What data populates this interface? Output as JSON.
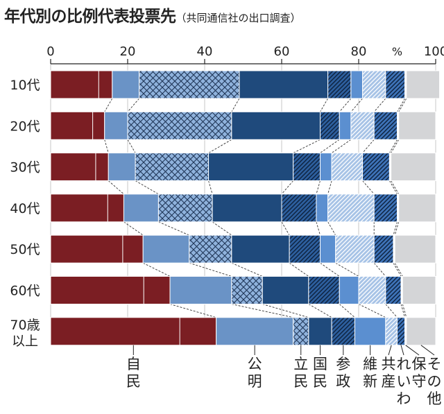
{
  "header": {
    "title": "年代別の比例代表投票先",
    "subtitle": "（共同通信社の出口調査）"
  },
  "chart_data": {
    "type": "bar",
    "stacked": true,
    "orientation": "horizontal",
    "title": "年代別の比例代表投票先",
    "subtitle": "（共同通信社の出口調査）",
    "xlim": [
      0,
      100
    ],
    "x_ticks": [
      "0",
      "20",
      "40",
      "60",
      "80",
      "100"
    ],
    "unit": "%",
    "categories": [
      "10代",
      "20代",
      "30代",
      "40代",
      "50代",
      "60代",
      "70歳以上"
    ],
    "series": [
      {
        "name": "自民",
        "color": "#7b1e23",
        "pattern": "solid",
        "values": [
          16,
          14,
          15,
          19,
          24,
          31,
          43
        ]
      },
      {
        "name": "公明",
        "color": "#6a93c6",
        "pattern": "solid",
        "values": [
          7,
          6,
          7,
          9,
          12,
          16,
          20
        ]
      },
      {
        "name": "立民",
        "color": "#8fb2dc",
        "pattern": "cross",
        "values": [
          26,
          27,
          19,
          14,
          11,
          8,
          4
        ]
      },
      {
        "name": "国民",
        "color": "#1f4a7c",
        "pattern": "solid",
        "values": [
          23,
          23,
          22,
          18,
          15,
          12,
          6
        ]
      },
      {
        "name": "参政",
        "color": "#2d5f9e",
        "pattern": "diag",
        "values": [
          6,
          5,
          7,
          9,
          8,
          8,
          6
        ]
      },
      {
        "name": "維新",
        "color": "#5b8fd0",
        "pattern": "solid",
        "values": [
          3,
          3,
          3,
          3,
          4,
          5,
          8
        ]
      },
      {
        "name": "共産",
        "color": "#a7c3e6",
        "pattern": "lightdiag",
        "values": [
          6,
          6,
          8,
          12,
          10,
          7,
          3
        ]
      },
      {
        "name": "れいわ",
        "color": "#3e73b8",
        "pattern": "diag",
        "values": [
          5,
          6,
          7,
          6,
          5,
          4,
          2
        ]
      },
      {
        "name": "保守",
        "color": "#ffffff",
        "pattern": "solid",
        "values": [
          0.4,
          0.4,
          0.4,
          0.4,
          0.4,
          0.4,
          0.4
        ]
      },
      {
        "name": "その他",
        "color": "#d4d5d7",
        "pattern": "solid",
        "values": [
          8.6,
          9.6,
          11.6,
          9.6,
          10.6,
          8.6,
          7.6
        ]
      }
    ],
    "grid": true,
    "legend": "bottom"
  }
}
